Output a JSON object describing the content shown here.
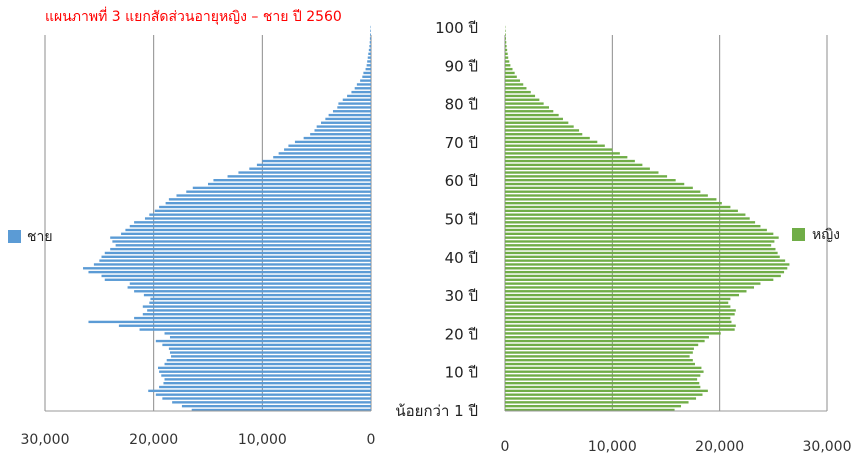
{
  "chart_data": {
    "type": "bar",
    "title": "แผนภาพที่ 3 แยกสัดส่วนอายุหญิง – ชาย ปี 2560",
    "age_labels": [
      "น้อยกว่า 1 ปี",
      "10 ปี",
      "20 ปี",
      "30 ปี",
      "40 ปี",
      "50 ปี",
      "60 ปี",
      "70 ปี",
      "80 ปี",
      "90 ปี",
      "100 ปี"
    ],
    "age_label_values": [
      0,
      10,
      20,
      30,
      40,
      50,
      60,
      70,
      80,
      90,
      100
    ],
    "male_axis": {
      "ticks": [
        "30,000",
        "20,000",
        "10,000",
        "0"
      ],
      "tick_values": [
        30000,
        20000,
        10000,
        0
      ],
      "range": [
        30000,
        0
      ]
    },
    "female_axis": {
      "ticks": [
        "0",
        "10,000",
        "20,000",
        "30,000"
      ],
      "tick_values": [
        0,
        10000,
        20000,
        30000
      ],
      "range": [
        0,
        30000
      ]
    },
    "grid": true,
    "legend_placement": "beside each panel",
    "ages": [
      0,
      1,
      2,
      3,
      4,
      5,
      6,
      7,
      8,
      9,
      10,
      11,
      12,
      13,
      14,
      15,
      16,
      17,
      18,
      19,
      20,
      21,
      22,
      23,
      24,
      25,
      26,
      27,
      28,
      29,
      30,
      31,
      32,
      33,
      34,
      35,
      36,
      37,
      38,
      39,
      40,
      41,
      42,
      43,
      44,
      45,
      46,
      47,
      48,
      49,
      50,
      51,
      52,
      53,
      54,
      55,
      56,
      57,
      58,
      59,
      60,
      61,
      62,
      63,
      64,
      65,
      66,
      67,
      68,
      69,
      70,
      71,
      72,
      73,
      74,
      75,
      76,
      77,
      78,
      79,
      80,
      81,
      82,
      83,
      84,
      85,
      86,
      87,
      88,
      89,
      90,
      91,
      92,
      93,
      94,
      95,
      96,
      97,
      98,
      99,
      100
    ],
    "series": [
      {
        "name": "ชาย",
        "color": "#5b9bd5",
        "values": [
          16500,
          17400,
          18300,
          19200,
          19800,
          20500,
          19500,
          19100,
          19000,
          19300,
          19500,
          19600,
          19000,
          18800,
          18400,
          18500,
          18600,
          19200,
          19800,
          18500,
          19000,
          21300,
          23200,
          26000,
          21800,
          21000,
          20600,
          21000,
          20400,
          20300,
          20900,
          21800,
          22400,
          22200,
          24500,
          24800,
          26000,
          26500,
          25500,
          25000,
          24800,
          24500,
          24000,
          23500,
          23800,
          24000,
          23000,
          22600,
          22200,
          21800,
          20800,
          20400,
          19900,
          19500,
          18900,
          18600,
          17900,
          17000,
          16400,
          15000,
          14500,
          13200,
          12200,
          11200,
          10500,
          10000,
          9000,
          8500,
          8000,
          7600,
          7000,
          6200,
          5600,
          5200,
          5000,
          4600,
          4200,
          3900,
          3500,
          3100,
          3000,
          2600,
          2200,
          1800,
          1500,
          1300,
          1000,
          800,
          700,
          500,
          400,
          350,
          300,
          250,
          200,
          150,
          120,
          100,
          80,
          60,
          40
        ]
      },
      {
        "name": "หญิง",
        "color": "#70ad47",
        "values": [
          15800,
          16400,
          17100,
          17800,
          18400,
          18900,
          18200,
          18100,
          17900,
          18200,
          18500,
          18300,
          17700,
          17500,
          17200,
          17500,
          17600,
          18000,
          18600,
          19000,
          20100,
          21400,
          21500,
          21100,
          21000,
          21400,
          21500,
          21000,
          20800,
          21000,
          21800,
          22500,
          23200,
          23800,
          25000,
          25700,
          26000,
          26300,
          26500,
          26100,
          25600,
          25400,
          25200,
          24800,
          25100,
          25500,
          25000,
          24400,
          23800,
          23300,
          22800,
          22400,
          21700,
          21000,
          20200,
          19700,
          18900,
          18200,
          17500,
          16700,
          15900,
          15100,
          14300,
          13500,
          12800,
          12100,
          11400,
          10700,
          10000,
          9300,
          8600,
          7900,
          7200,
          6900,
          6400,
          5900,
          5400,
          5000,
          4500,
          4100,
          3600,
          3200,
          2800,
          2400,
          2000,
          1700,
          1400,
          1100,
          900,
          700,
          500,
          400,
          300,
          250,
          200,
          150,
          120,
          90,
          70,
          50,
          30
        ]
      }
    ]
  }
}
